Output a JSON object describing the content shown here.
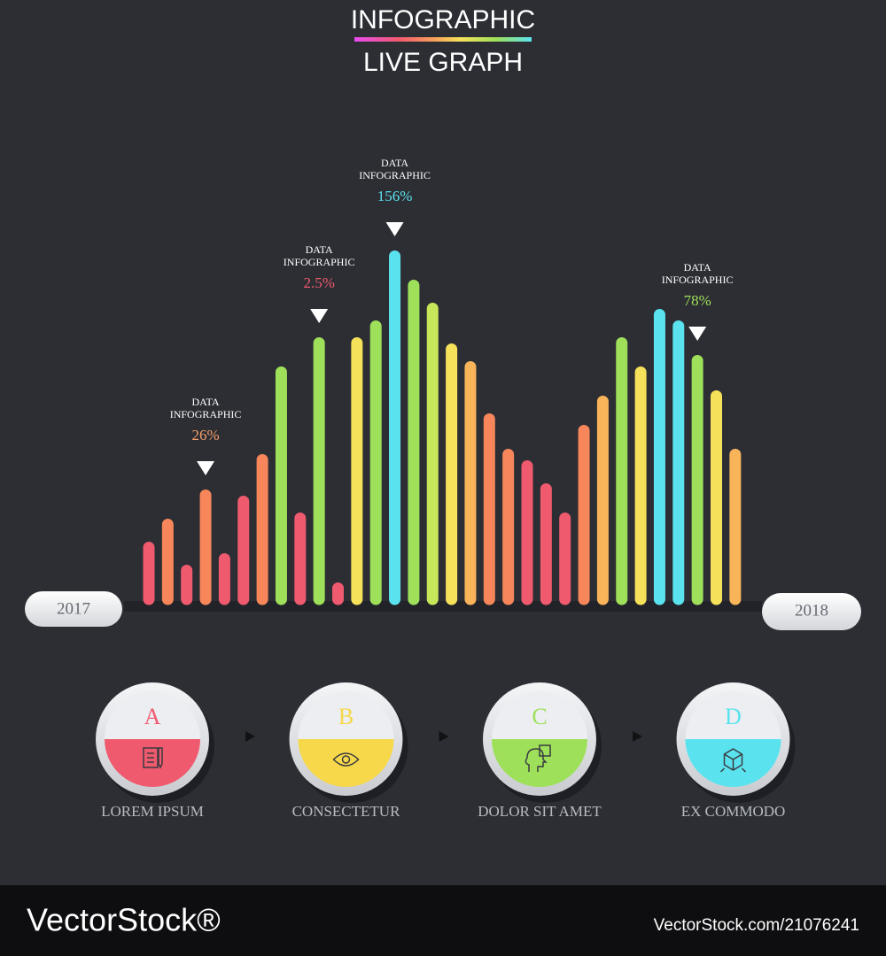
{
  "chart_data": {
    "type": "bar",
    "title": "INFOGRAPHIC",
    "subtitle": "LIVE GRAPH",
    "values": [
      65,
      91,
      39,
      124,
      52,
      117,
      164,
      263,
      98,
      296,
      19,
      296,
      315,
      394,
      361,
      335,
      289,
      269,
      210,
      170,
      157,
      131,
      98,
      197,
      230,
      296,
      263,
      328,
      315,
      276,
      236,
      170
    ],
    "colors": [
      "#f05a6e",
      "#f7875a",
      "#f05a6e",
      "#f7875a",
      "#f05a6e",
      "#f05a6e",
      "#f7875a",
      "#9ee05a",
      "#f05a6e",
      "#9ee05a",
      "#f05a6e",
      "#f6e15a",
      "#9ee05a",
      "#5ae3ef",
      "#9ee05a",
      "#c8e65a",
      "#f6e15a",
      "#f9b45a",
      "#f7875a",
      "#f7875a",
      "#f05a6e",
      "#f05a6e",
      "#f05a6e",
      "#f7875a",
      "#f9b45a",
      "#9ee05a",
      "#f6e15a",
      "#5ae3ef",
      "#5ae3ef",
      "#9ee05a",
      "#f6e15a",
      "#f9b45a"
    ],
    "ylim": [
      0,
      400
    ],
    "annotations": [
      null,
      null,
      null,
      {
        "label": [
          "DATA",
          "INFOGRAPHIC"
        ],
        "value": 26,
        "value_label": "26%",
        "color": "#f7a06a"
      },
      null,
      null,
      null,
      null,
      null,
      {
        "label": [
          "DATA",
          "INFOGRAPHIC"
        ],
        "value": 2.5,
        "value_label": "2.5%",
        "color": "#f05a6e"
      },
      null,
      null,
      null,
      {
        "label": [
          "DATA",
          "INFOGRAPHIC"
        ],
        "value": 156,
        "value_label": "156%",
        "color": "#5ae3ef"
      },
      null,
      null,
      null,
      null,
      null,
      null,
      null,
      null,
      null,
      null,
      null,
      null,
      null,
      null,
      null,
      {
        "label": [
          "DATA",
          "INFOGRAPHIC"
        ],
        "value": 78,
        "value_label": "78%",
        "color": "#9ee05a"
      },
      null,
      null
    ],
    "start_label": "2017",
    "end_label": "2018"
  },
  "steps": [
    {
      "letter": "A",
      "caption": "LOREM IPSUM",
      "color": "#f05a6e"
    },
    {
      "letter": "B",
      "caption": "CONSECTETUR",
      "color": "#f6d84a"
    },
    {
      "letter": "C",
      "caption": "DOLOR SIT AMET",
      "color": "#9ee05a"
    },
    {
      "letter": "D",
      "caption": "EX COMMODO",
      "color": "#5ae3ef"
    }
  ],
  "footer": {
    "brand": "VectorStock®",
    "url": "VectorStock.com/21076241"
  }
}
